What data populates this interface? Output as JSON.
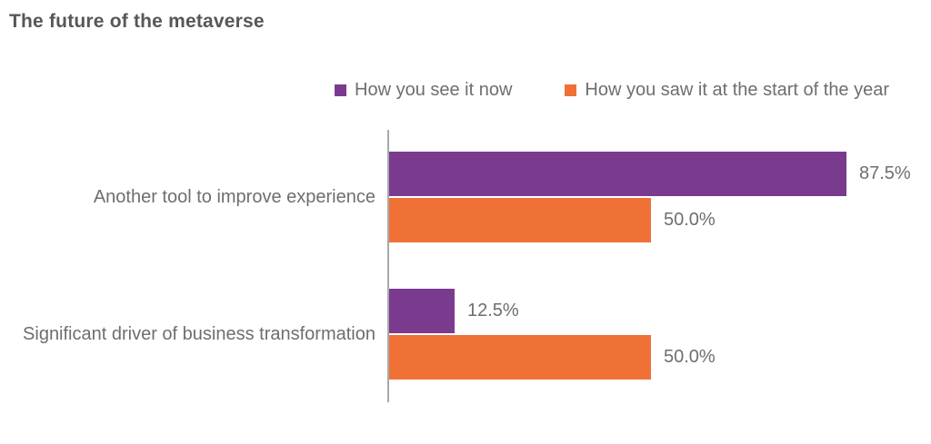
{
  "title": "The future of the metaverse",
  "legend": {
    "items": [
      {
        "label": "How you see it now",
        "color": "#7a3b8f"
      },
      {
        "label": "How you saw it at the start of the year",
        "color": "#ef7136"
      }
    ]
  },
  "chart_data": {
    "type": "bar",
    "orientation": "horizontal",
    "title": "The future of the metaverse",
    "categories": [
      "Another tool to improve experience",
      "Significant driver of business transformation"
    ],
    "series": [
      {
        "name": "How you see it now",
        "color": "#7a3b8f",
        "values": [
          87.5,
          12.5
        ],
        "labels": [
          "87.5%",
          "12.5%"
        ]
      },
      {
        "name": "How you saw it at the start of the year",
        "color": "#ef7136",
        "values": [
          50.0,
          50.0
        ],
        "labels": [
          "50.0%",
          "50.0%"
        ]
      }
    ],
    "xlim": [
      0,
      100
    ],
    "grid": false,
    "legend_position": "top",
    "axis_color": "#a7a9ac",
    "label_color": "#6d6e71"
  }
}
